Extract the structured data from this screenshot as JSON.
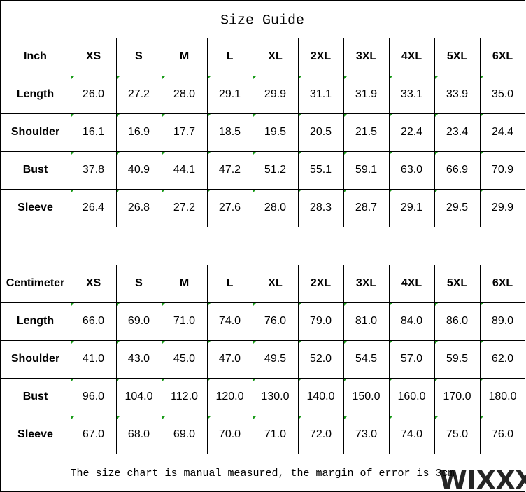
{
  "title": "Size Guide",
  "tables": [
    {
      "header": [
        "Inch",
        "XS",
        "S",
        "M",
        "L",
        "XL",
        "2XL",
        "3XL",
        "4XL",
        "5XL",
        "6XL"
      ],
      "rows": [
        [
          "Length",
          "26.0",
          "27.2",
          "28.0",
          "29.1",
          "29.9",
          "31.1",
          "31.9",
          "33.1",
          "33.9",
          "35.0"
        ],
        [
          "Shoulder",
          "16.1",
          "16.9",
          "17.7",
          "18.5",
          "19.5",
          "20.5",
          "21.5",
          "22.4",
          "23.4",
          "24.4"
        ],
        [
          "Bust",
          "37.8",
          "40.9",
          "44.1",
          "47.2",
          "51.2",
          "55.1",
          "59.1",
          "63.0",
          "66.9",
          "70.9"
        ],
        [
          "Sleeve",
          "26.4",
          "26.8",
          "27.2",
          "27.6",
          "28.0",
          "28.3",
          "28.7",
          "29.1",
          "29.5",
          "29.9"
        ]
      ]
    },
    {
      "header": [
        "Centimeter",
        "XS",
        "S",
        "M",
        "L",
        "XL",
        "2XL",
        "3XL",
        "4XL",
        "5XL",
        "6XL"
      ],
      "rows": [
        [
          "Length",
          "66.0",
          "69.0",
          "71.0",
          "74.0",
          "76.0",
          "79.0",
          "81.0",
          "84.0",
          "86.0",
          "89.0"
        ],
        [
          "Shoulder",
          "41.0",
          "43.0",
          "45.0",
          "47.0",
          "49.5",
          "52.0",
          "54.5",
          "57.0",
          "59.5",
          "62.0"
        ],
        [
          "Bust",
          "96.0",
          "104.0",
          "112.0",
          "120.0",
          "130.0",
          "140.0",
          "150.0",
          "160.0",
          "170.0",
          "180.0"
        ],
        [
          "Sleeve",
          "67.0",
          "68.0",
          "69.0",
          "70.0",
          "71.0",
          "72.0",
          "73.0",
          "74.0",
          "75.0",
          "76.0"
        ]
      ]
    }
  ],
  "note": "The size chart is manual measured, the margin of error is 3cm",
  "watermark": "WIXXX"
}
